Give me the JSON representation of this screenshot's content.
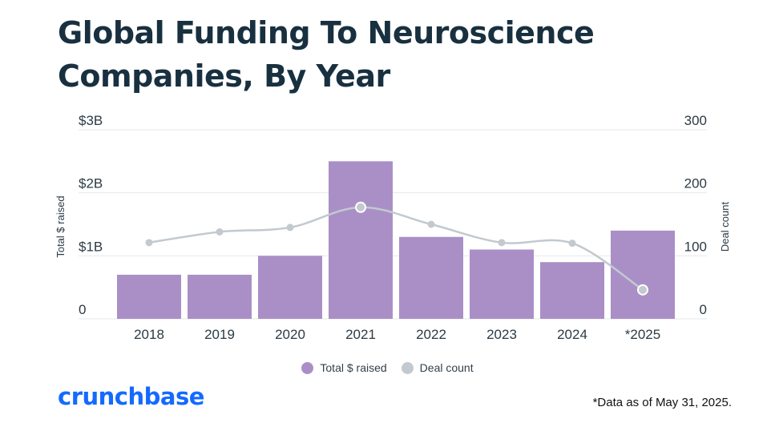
{
  "title": "Global Funding To Neuroscience Companies, By Year",
  "legend": {
    "funding_label": "Total $ raised",
    "deals_label": "Deal count"
  },
  "logo_text": "crunchbase",
  "footnote": "*Data as of May 31, 2025.",
  "colors": {
    "bar": "#aa8fc7",
    "line": "#c2c9cf",
    "point": "#c2c9cf",
    "grid": "#e6e8ea",
    "title": "#18303f",
    "logo": "#146aff"
  },
  "chart_data": {
    "type": "bar",
    "categories": [
      "2018",
      "2019",
      "2020",
      "2021",
      "2022",
      "2023",
      "2024",
      "*2025"
    ],
    "series": [
      {
        "name": "Total $ raised",
        "type": "bar",
        "axis": "left",
        "values": [
          0.7,
          0.7,
          1.0,
          2.5,
          1.3,
          1.1,
          0.9,
          1.4
        ]
      },
      {
        "name": "Deal count",
        "type": "line",
        "axis": "right",
        "values": [
          121,
          138,
          145,
          177,
          150,
          121,
          120,
          46
        ]
      }
    ],
    "y_left": {
      "label": "Total $ raised",
      "range": [
        0,
        3
      ],
      "ticks": [
        0,
        1,
        2,
        3
      ],
      "tick_labels": [
        "0",
        "$1B",
        "$2B",
        "$3B"
      ]
    },
    "y_right": {
      "label": "Deal count",
      "range": [
        0,
        300
      ],
      "ticks": [
        0,
        100,
        200,
        300
      ],
      "tick_labels": [
        "0",
        "100",
        "200",
        "300"
      ]
    },
    "grid": true,
    "legend_position": "bottom-center"
  }
}
